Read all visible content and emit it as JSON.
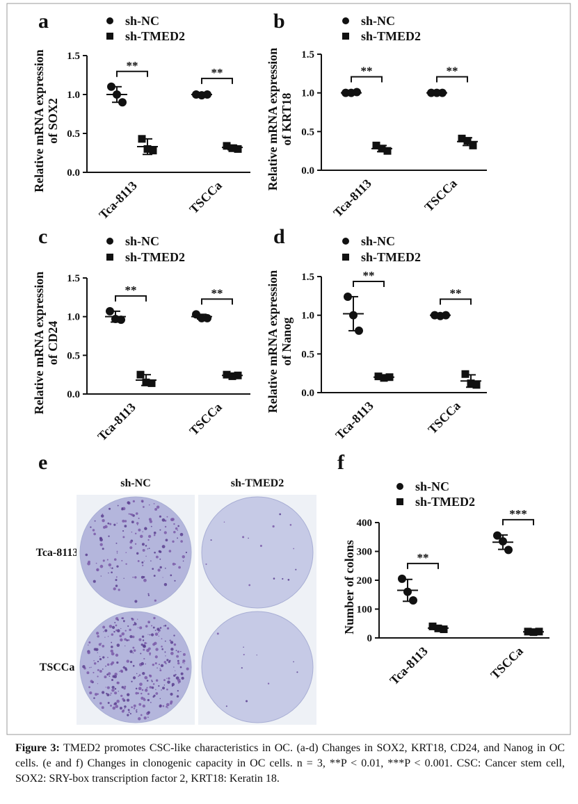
{
  "chart_data": [
    {
      "type": "dot",
      "label": "a",
      "y_label": [
        "Relative mRNA expression",
        "of SOX2"
      ],
      "categories": [
        "Tca-8113",
        "TSCCa"
      ],
      "series": [
        {
          "name": "sh-NC",
          "marker": "circle",
          "color": "#111111",
          "points": [
            [
              1.1,
              1.0,
              0.9
            ],
            [
              1.0,
              0.99,
              1.0
            ]
          ],
          "mean": [
            1.0,
            1.0
          ],
          "sd": [
            0.1,
            0.01
          ]
        },
        {
          "name": "sh-TMED2",
          "marker": "square",
          "color": "#111111",
          "points": [
            [
              0.43,
              0.3,
              0.28
            ],
            [
              0.34,
              0.31,
              0.3
            ]
          ],
          "mean": [
            0.33,
            0.32
          ],
          "sd": [
            0.1,
            0.03
          ]
        }
      ],
      "significance": [
        "**",
        "**"
      ],
      "ylim": [
        0,
        1.5
      ],
      "yticks": [
        {
          "value": 0,
          "label": "0.0"
        },
        {
          "value": 0.5,
          "label": "0.5"
        },
        {
          "value": 1,
          "label": "1.0"
        },
        {
          "value": 1.5,
          "label": "1.5"
        }
      ]
    },
    {
      "type": "dot",
      "label": "b",
      "y_label": [
        "Relative mRNA expression",
        "of KRT18"
      ],
      "categories": [
        "Tca-8113",
        "TSCCa"
      ],
      "series": [
        {
          "name": "sh-NC",
          "marker": "circle",
          "color": "#111111",
          "points": [
            [
              1.0,
              1.0,
              1.01
            ],
            [
              1.0,
              1.0,
              1.0
            ]
          ],
          "mean": [
            1.0,
            1.0
          ],
          "sd": [
            0.01,
            0.01
          ]
        },
        {
          "name": "sh-TMED2",
          "marker": "square",
          "color": "#111111",
          "points": [
            [
              0.32,
              0.28,
              0.25
            ],
            [
              0.41,
              0.38,
              0.32
            ]
          ],
          "mean": [
            0.28,
            0.37
          ],
          "sd": [
            0.04,
            0.05
          ]
        }
      ],
      "significance": [
        "**",
        "**"
      ],
      "ylim": [
        0,
        1.5
      ],
      "yticks": [
        {
          "value": 0,
          "label": "0.0"
        },
        {
          "value": 0.5,
          "label": "0.5"
        },
        {
          "value": 1,
          "label": "1.0"
        },
        {
          "value": 1.5,
          "label": "1.5"
        }
      ]
    },
    {
      "type": "dot",
      "label": "c",
      "y_label": [
        "Relative mRNA expression",
        "of CD24"
      ],
      "categories": [
        "Tca-8113",
        "TSCCa"
      ],
      "series": [
        {
          "name": "sh-NC",
          "marker": "circle",
          "color": "#111111",
          "points": [
            [
              1.07,
              0.97,
              0.96
            ],
            [
              1.03,
              0.98,
              0.98
            ]
          ],
          "mean": [
            1.0,
            1.0
          ],
          "sd": [
            0.07,
            0.03
          ]
        },
        {
          "name": "sh-TMED2",
          "marker": "square",
          "color": "#111111",
          "points": [
            [
              0.25,
              0.15,
              0.14
            ],
            [
              0.25,
              0.23,
              0.24
            ]
          ],
          "mean": [
            0.18,
            0.24
          ],
          "sd": [
            0.07,
            0.01
          ]
        }
      ],
      "significance": [
        "**",
        "**"
      ],
      "ylim": [
        0,
        1.5
      ],
      "yticks": [
        {
          "value": 0,
          "label": "0.0"
        },
        {
          "value": 0.5,
          "label": "0.5"
        },
        {
          "value": 1,
          "label": "1.0"
        },
        {
          "value": 1.5,
          "label": "1.5"
        }
      ]
    },
    {
      "type": "dot",
      "label": "d",
      "y_label": [
        "Relative mRNA expression",
        "of Nanog"
      ],
      "categories": [
        "Tca-8113",
        "TSCCa"
      ],
      "series": [
        {
          "name": "sh-NC",
          "marker": "circle",
          "color": "#111111",
          "points": [
            [
              1.24,
              1.0,
              0.8
            ],
            [
              1.0,
              0.99,
              1.0
            ]
          ],
          "mean": [
            1.02,
            1.0
          ],
          "sd": [
            0.22,
            0.01
          ]
        },
        {
          "name": "sh-TMED2",
          "marker": "square",
          "color": "#111111",
          "points": [
            [
              0.21,
              0.19,
              0.2
            ],
            [
              0.24,
              0.12,
              0.1
            ]
          ],
          "mean": [
            0.2,
            0.15
          ],
          "sd": [
            0.01,
            0.08
          ]
        }
      ],
      "significance": [
        "**",
        "**"
      ],
      "ylim": [
        0,
        1.5
      ],
      "yticks": [
        {
          "value": 0,
          "label": "0.0"
        },
        {
          "value": 0.5,
          "label": "0.5"
        },
        {
          "value": 1,
          "label": "1.0"
        },
        {
          "value": 1.5,
          "label": "1.5"
        }
      ]
    },
    {
      "type": "dot",
      "label": "f",
      "y_label": [
        "Number of colons"
      ],
      "categories": [
        "Tca-8113",
        "TSCCa"
      ],
      "series": [
        {
          "name": "sh-NC",
          "marker": "circle",
          "color": "#111111",
          "points": [
            [
              205,
              160,
              130
            ],
            [
              355,
              335,
              305
            ]
          ],
          "mean": [
            165,
            332
          ],
          "sd": [
            38,
            25
          ]
        },
        {
          "name": "sh-TMED2",
          "marker": "square",
          "color": "#111111",
          "points": [
            [
              40,
              33,
              30
            ],
            [
              22,
              20,
              22
            ]
          ],
          "mean": [
            34,
            21
          ],
          "sd": [
            5,
            1
          ]
        }
      ],
      "significance": [
        "**",
        "***"
      ],
      "ylim": [
        0,
        400
      ],
      "yticks": [
        0,
        100,
        200,
        300,
        400
      ]
    }
  ],
  "colony_panel": {
    "label": "e",
    "columns": [
      "sh-NC",
      "sh-TMED2"
    ],
    "rows": [
      "Tca-8113",
      "TSCCa"
    ]
  },
  "caption": {
    "label": "Figure 3:",
    "text": "TMED2 promotes CSC-like characteristics in OC. (a-d) Changes in SOX2, KRT18, CD24, and Nanog in OC cells. (e and f) Changes in clonogenic capacity in OC cells. n = 3, **P < 0.01, ***P < 0.001. CSC: Cancer stem cell, SOX2: SRY-box transcription factor 2, KRT18: Keratin 18."
  }
}
